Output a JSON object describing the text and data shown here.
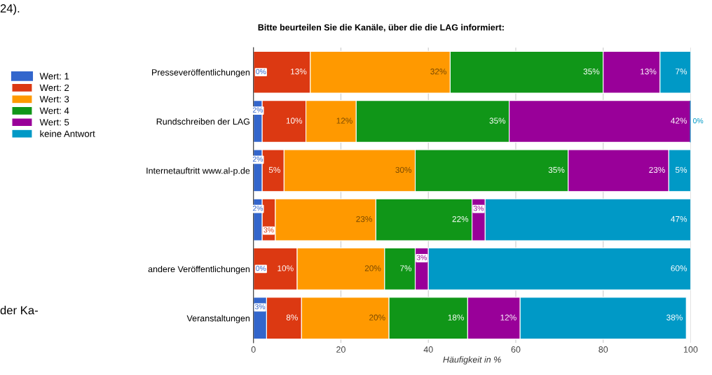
{
  "chart_data": {
    "type": "bar",
    "orientation": "horizontal",
    "stacked": true,
    "title": "Bitte beurteilen Sie die Kanäle, über die die LAG informiert:",
    "xlabel": "Häufigkeit in %",
    "categories": [
      "Presseveröffentlichungen",
      "Rundschreiben der LAG",
      "Internetauftritt www.al-p.de",
      null,
      "andere Veröffentlichungen",
      "Veranstaltungen"
    ],
    "series": [
      {
        "name": "Wert: 1",
        "color": "#3366cc",
        "values": [
          0,
          2,
          2,
          2,
          0,
          3
        ],
        "value_labels": [
          "0%",
          "2%",
          "2%",
          "2%",
          "0%",
          "3%"
        ]
      },
      {
        "name": "Wert: 2",
        "color": "#dc3912",
        "values": [
          13,
          10,
          5,
          3,
          10,
          8
        ],
        "value_labels": [
          "13%",
          "10%",
          "5%",
          "3%",
          "10%",
          "8%"
        ]
      },
      {
        "name": "Wert: 3",
        "color": "#ff9900",
        "values": [
          32,
          11.5,
          30,
          23,
          20,
          20
        ],
        "value_labels": [
          "32%",
          "12%",
          "30%",
          "23%",
          "20%",
          "20%"
        ]
      },
      {
        "name": "Wert: 4",
        "color": "#109618",
        "values": [
          35,
          35,
          35,
          22,
          7,
          18
        ],
        "value_labels": [
          "35%",
          "35%",
          "35%",
          "22%",
          "7%",
          "18%"
        ]
      },
      {
        "name": "Wert: 5",
        "color": "#990099",
        "values": [
          13,
          41.5,
          23,
          3,
          3,
          12
        ],
        "value_labels": [
          "13%",
          "42%",
          "23%",
          "3%",
          "3%",
          "12%"
        ]
      },
      {
        "name": "keine Antwort",
        "color": "#0099c6",
        "values": [
          7,
          0,
          5,
          47,
          60,
          38
        ],
        "value_labels": [
          "7%",
          "0%",
          "5%",
          "47%",
          "60%",
          "38%"
        ]
      }
    ],
    "xlim": [
      0,
      100
    ],
    "xticks": [
      0,
      20,
      40,
      60,
      80,
      100
    ],
    "grid": "x",
    "legend": "left",
    "annotations": [
      "24).",
      "der Ka-"
    ]
  }
}
